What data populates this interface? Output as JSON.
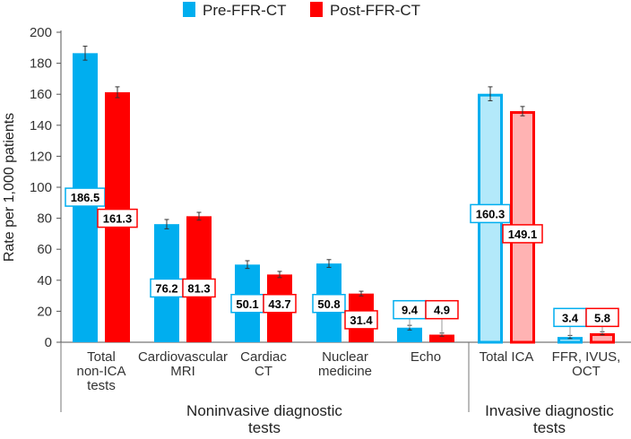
{
  "chart_data": {
    "type": "bar",
    "title": "",
    "ylabel": "Rate per 1,000 patients",
    "xlabel": "",
    "ylim": [
      0,
      200
    ],
    "yticks": [
      0,
      20,
      40,
      60,
      80,
      100,
      120,
      140,
      160,
      180,
      200
    ],
    "grid": false,
    "legend_position": "top-center",
    "categories": [
      "Total non-ICA tests",
      "Cardiovascular MRI",
      "Cardiac CT",
      "Nuclear medicine",
      "Echo",
      "Total ICA",
      "FFR, IVUS, OCT"
    ],
    "category_lines": [
      [
        "Total",
        "non-ICA",
        "tests"
      ],
      [
        "Cardiovascular",
        "MRI"
      ],
      [
        "Cardiac",
        "CT"
      ],
      [
        "Nuclear",
        "medicine"
      ],
      [
        "Echo"
      ],
      [
        "Total ICA"
      ],
      [
        "FFR, IVUS,",
        "OCT"
      ]
    ],
    "groups": [
      {
        "label_lines": [
          "Noninvasive diagnostic",
          "tests"
        ],
        "categories": [
          0,
          1,
          2,
          3,
          4
        ]
      },
      {
        "label_lines": [
          "Invasive diagnostic",
          "tests"
        ],
        "categories": [
          5,
          6
        ]
      }
    ],
    "series": [
      {
        "name": "Pre-FFR-CT",
        "color": "#00AEEF",
        "light_color": "#B3E9FA",
        "values": [
          186.5,
          76.2,
          50.1,
          50.8,
          9.4,
          160.3,
          3.4
        ],
        "labels": [
          "186.5",
          "76.2",
          "50.1",
          "50.8",
          "9.4",
          "160.3",
          "3.4"
        ],
        "error": [
          4.5,
          3,
          2.5,
          2.5,
          1.5,
          4.5,
          1
        ]
      },
      {
        "name": "Post-FFR-CT",
        "color": "#FF0000",
        "light_color": "#FFB3B3",
        "values": [
          161.3,
          81.3,
          43.7,
          31.4,
          4.9,
          149.1,
          5.8
        ],
        "labels": [
          "161.3",
          "81.3",
          "43.7",
          "31.4",
          "4.9",
          "149.1",
          "5.8"
        ],
        "error": [
          3.5,
          2.5,
          2,
          1.5,
          1,
          3,
          1
        ]
      }
    ],
    "invasive_style_outline": [
      5,
      6
    ]
  }
}
